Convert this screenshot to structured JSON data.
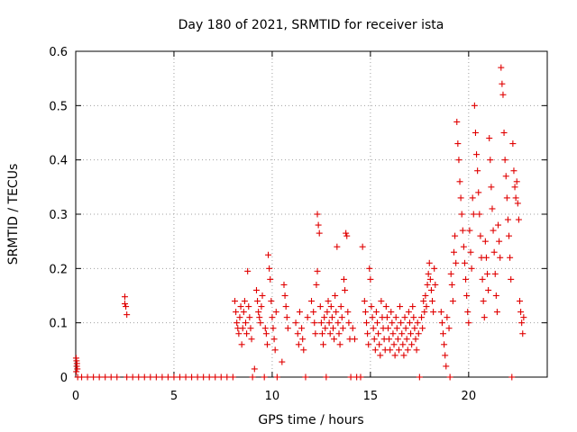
{
  "chart_data": {
    "type": "scatter",
    "title": "Day 180 of 2021, SRMTID for receiver ista",
    "xlabel": "GPS time / hours",
    "ylabel": "SRMTID / TECUs",
    "xlim": [
      0,
      24
    ],
    "ylim": [
      0,
      0.6
    ],
    "xticks": [
      0,
      5,
      10,
      15,
      20
    ],
    "yticks": [
      0,
      0.1,
      0.2,
      0.3,
      0.4,
      0.5,
      0.6
    ],
    "ytick_labels": [
      "0",
      "0.1",
      "0.2",
      "0.3",
      "0.4",
      "0.5",
      "0.6"
    ],
    "grid": true,
    "marker": "+",
    "color": "#e00000",
    "series": [
      {
        "name": "SRMTID",
        "points": [
          [
            0.02,
            0.035
          ],
          [
            0.04,
            0.03
          ],
          [
            0.06,
            0.025
          ],
          [
            0.05,
            0.02
          ],
          [
            0.08,
            0.015
          ],
          [
            0.03,
            0.01
          ],
          [
            0.1,
            0.0
          ],
          [
            0.3,
            0.0
          ],
          [
            0.6,
            0.0
          ],
          [
            0.9,
            0.0
          ],
          [
            1.2,
            0.0
          ],
          [
            1.5,
            0.0
          ],
          [
            1.8,
            0.0
          ],
          [
            2.1,
            0.0
          ],
          [
            2.5,
            0.148
          ],
          [
            2.5,
            0.135
          ],
          [
            2.55,
            0.13
          ],
          [
            2.6,
            0.115
          ],
          [
            2.6,
            0.0
          ],
          [
            2.9,
            0.0
          ],
          [
            3.2,
            0.0
          ],
          [
            3.5,
            0.0
          ],
          [
            3.8,
            0.0
          ],
          [
            4.1,
            0.0
          ],
          [
            4.4,
            0.0
          ],
          [
            4.7,
            0.0
          ],
          [
            5.0,
            0.0
          ],
          [
            5.3,
            0.0
          ],
          [
            5.6,
            0.0
          ],
          [
            5.9,
            0.0
          ],
          [
            6.2,
            0.0
          ],
          [
            6.5,
            0.0
          ],
          [
            6.8,
            0.0
          ],
          [
            7.1,
            0.0
          ],
          [
            7.4,
            0.0
          ],
          [
            7.7,
            0.0
          ],
          [
            8.0,
            0.0
          ],
          [
            8.1,
            0.14
          ],
          [
            8.15,
            0.12
          ],
          [
            8.2,
            0.1
          ],
          [
            8.25,
            0.09
          ],
          [
            8.3,
            0.08
          ],
          [
            8.35,
            0.11
          ],
          [
            8.4,
            0.13
          ],
          [
            8.45,
            0.06
          ],
          [
            8.5,
            0.09
          ],
          [
            8.55,
            0.12
          ],
          [
            8.6,
            0.14
          ],
          [
            8.65,
            0.1
          ],
          [
            8.7,
            0.08
          ],
          [
            8.75,
            0.195
          ],
          [
            8.8,
            0.13
          ],
          [
            8.85,
            0.11
          ],
          [
            8.9,
            0.09
          ],
          [
            8.95,
            0.07
          ],
          [
            9.0,
            0.0
          ],
          [
            9.1,
            0.015
          ],
          [
            9.2,
            0.16
          ],
          [
            9.25,
            0.14
          ],
          [
            9.3,
            0.12
          ],
          [
            9.35,
            0.11
          ],
          [
            9.4,
            0.1
          ],
          [
            9.45,
            0.13
          ],
          [
            9.5,
            0.15
          ],
          [
            9.6,
            0.0
          ],
          [
            9.65,
            0.09
          ],
          [
            9.7,
            0.08
          ],
          [
            9.75,
            0.06
          ],
          [
            9.8,
            0.225
          ],
          [
            9.85,
            0.2
          ],
          [
            9.9,
            0.18
          ],
          [
            9.95,
            0.14
          ],
          [
            10.0,
            0.11
          ],
          [
            10.05,
            0.09
          ],
          [
            10.1,
            0.07
          ],
          [
            10.15,
            0.05
          ],
          [
            10.2,
            0.12
          ],
          [
            10.25,
            0.0
          ],
          [
            10.6,
            0.17
          ],
          [
            10.65,
            0.15
          ],
          [
            10.7,
            0.13
          ],
          [
            10.75,
            0.11
          ],
          [
            10.8,
            0.09
          ],
          [
            10.5,
            0.028
          ],
          [
            11.2,
            0.1
          ],
          [
            11.3,
            0.08
          ],
          [
            11.35,
            0.06
          ],
          [
            11.4,
            0.12
          ],
          [
            11.5,
            0.09
          ],
          [
            11.55,
            0.07
          ],
          [
            11.6,
            0.05
          ],
          [
            11.7,
            0.0
          ],
          [
            11.8,
            0.11
          ],
          [
            12.0,
            0.14
          ],
          [
            12.1,
            0.12
          ],
          [
            12.15,
            0.1
          ],
          [
            12.2,
            0.08
          ],
          [
            12.25,
            0.17
          ],
          [
            12.3,
            0.195
          ],
          [
            12.3,
            0.3
          ],
          [
            12.35,
            0.28
          ],
          [
            12.4,
            0.265
          ],
          [
            12.45,
            0.13
          ],
          [
            12.5,
            0.1
          ],
          [
            12.55,
            0.08
          ],
          [
            12.6,
            0.06
          ],
          [
            12.65,
            0.11
          ],
          [
            12.7,
            0.09
          ],
          [
            12.75,
            0.0
          ],
          [
            12.8,
            0.12
          ],
          [
            12.85,
            0.14
          ],
          [
            12.9,
            0.1
          ],
          [
            12.95,
            0.08
          ],
          [
            13.0,
            0.13
          ],
          [
            13.05,
            0.11
          ],
          [
            13.1,
            0.09
          ],
          [
            13.15,
            0.07
          ],
          [
            13.2,
            0.15
          ],
          [
            13.25,
            0.12
          ],
          [
            13.3,
            0.24
          ],
          [
            13.35,
            0.1
          ],
          [
            13.4,
            0.08
          ],
          [
            13.45,
            0.06
          ],
          [
            13.5,
            0.13
          ],
          [
            13.55,
            0.11
          ],
          [
            13.6,
            0.09
          ],
          [
            13.65,
            0.18
          ],
          [
            13.7,
            0.16
          ],
          [
            13.75,
            0.265
          ],
          [
            13.8,
            0.26
          ],
          [
            13.85,
            0.12
          ],
          [
            13.9,
            0.1
          ],
          [
            13.95,
            0.07
          ],
          [
            14.0,
            0.0
          ],
          [
            14.1,
            0.09
          ],
          [
            14.2,
            0.07
          ],
          [
            14.3,
            0.0
          ],
          [
            14.5,
            0.0
          ],
          [
            14.6,
            0.24
          ],
          [
            14.7,
            0.14
          ],
          [
            14.75,
            0.12
          ],
          [
            14.8,
            0.1
          ],
          [
            14.85,
            0.08
          ],
          [
            14.9,
            0.06
          ],
          [
            14.95,
            0.2
          ],
          [
            15.0,
            0.18
          ],
          [
            15.05,
            0.13
          ],
          [
            15.1,
            0.11
          ],
          [
            15.15,
            0.09
          ],
          [
            15.2,
            0.07
          ],
          [
            15.25,
            0.05
          ],
          [
            15.3,
            0.12
          ],
          [
            15.35,
            0.1
          ],
          [
            15.4,
            0.08
          ],
          [
            15.45,
            0.06
          ],
          [
            15.5,
            0.04
          ],
          [
            15.55,
            0.14
          ],
          [
            15.6,
            0.11
          ],
          [
            15.65,
            0.09
          ],
          [
            15.7,
            0.07
          ],
          [
            15.75,
            0.05
          ],
          [
            15.8,
            0.13
          ],
          [
            15.85,
            0.11
          ],
          [
            15.9,
            0.09
          ],
          [
            15.95,
            0.07
          ],
          [
            16.0,
            0.05
          ],
          [
            16.05,
            0.12
          ],
          [
            16.1,
            0.1
          ],
          [
            16.15,
            0.08
          ],
          [
            16.2,
            0.06
          ],
          [
            16.25,
            0.04
          ],
          [
            16.3,
            0.11
          ],
          [
            16.35,
            0.09
          ],
          [
            16.4,
            0.07
          ],
          [
            16.45,
            0.05
          ],
          [
            16.5,
            0.13
          ],
          [
            16.55,
            0.1
          ],
          [
            16.6,
            0.08
          ],
          [
            16.65,
            0.06
          ],
          [
            16.7,
            0.04
          ],
          [
            16.75,
            0.11
          ],
          [
            16.8,
            0.09
          ],
          [
            16.85,
            0.07
          ],
          [
            16.9,
            0.05
          ],
          [
            16.95,
            0.12
          ],
          [
            17.0,
            0.1
          ],
          [
            17.05,
            0.08
          ],
          [
            17.1,
            0.06
          ],
          [
            17.15,
            0.13
          ],
          [
            17.2,
            0.11
          ],
          [
            17.25,
            0.09
          ],
          [
            17.3,
            0.07
          ],
          [
            17.35,
            0.05
          ],
          [
            17.4,
            0.1
          ],
          [
            17.45,
            0.08
          ],
          [
            17.5,
            0.0
          ],
          [
            17.6,
            0.11
          ],
          [
            17.65,
            0.09
          ],
          [
            17.7,
            0.14
          ],
          [
            17.75,
            0.12
          ],
          [
            17.8,
            0.15
          ],
          [
            17.85,
            0.13
          ],
          [
            17.9,
            0.17
          ],
          [
            17.95,
            0.19
          ],
          [
            18.0,
            0.21
          ],
          [
            18.05,
            0.18
          ],
          [
            18.1,
            0.16
          ],
          [
            18.15,
            0.14
          ],
          [
            18.2,
            0.12
          ],
          [
            18.25,
            0.2
          ],
          [
            18.3,
            0.17
          ],
          [
            18.6,
            0.12
          ],
          [
            18.65,
            0.1
          ],
          [
            18.7,
            0.08
          ],
          [
            18.75,
            0.06
          ],
          [
            18.8,
            0.04
          ],
          [
            18.85,
            0.02
          ],
          [
            18.9,
            0.11
          ],
          [
            19.0,
            0.09
          ],
          [
            19.05,
            0.0
          ],
          [
            19.1,
            0.19
          ],
          [
            19.15,
            0.17
          ],
          [
            19.2,
            0.14
          ],
          [
            19.25,
            0.23
          ],
          [
            19.3,
            0.26
          ],
          [
            19.35,
            0.21
          ],
          [
            19.4,
            0.47
          ],
          [
            19.45,
            0.43
          ],
          [
            19.5,
            0.4
          ],
          [
            19.55,
            0.36
          ],
          [
            19.6,
            0.33
          ],
          [
            19.65,
            0.3
          ],
          [
            19.7,
            0.27
          ],
          [
            19.75,
            0.24
          ],
          [
            19.8,
            0.21
          ],
          [
            19.85,
            0.18
          ],
          [
            19.9,
            0.15
          ],
          [
            19.95,
            0.12
          ],
          [
            20.0,
            0.1
          ],
          [
            20.05,
            0.27
          ],
          [
            20.1,
            0.23
          ],
          [
            20.15,
            0.2
          ],
          [
            20.2,
            0.33
          ],
          [
            20.25,
            0.3
          ],
          [
            20.3,
            0.5
          ],
          [
            20.35,
            0.45
          ],
          [
            20.4,
            0.41
          ],
          [
            20.45,
            0.38
          ],
          [
            20.5,
            0.34
          ],
          [
            20.55,
            0.3
          ],
          [
            20.6,
            0.26
          ],
          [
            20.65,
            0.22
          ],
          [
            20.7,
            0.18
          ],
          [
            20.75,
            0.14
          ],
          [
            20.8,
            0.11
          ],
          [
            20.85,
            0.25
          ],
          [
            20.9,
            0.22
          ],
          [
            20.95,
            0.19
          ],
          [
            21.0,
            0.16
          ],
          [
            21.05,
            0.44
          ],
          [
            21.1,
            0.4
          ],
          [
            21.15,
            0.35
          ],
          [
            21.2,
            0.31
          ],
          [
            21.25,
            0.27
          ],
          [
            21.3,
            0.23
          ],
          [
            21.35,
            0.19
          ],
          [
            21.4,
            0.15
          ],
          [
            21.45,
            0.12
          ],
          [
            21.5,
            0.28
          ],
          [
            21.55,
            0.25
          ],
          [
            21.6,
            0.22
          ],
          [
            21.65,
            0.57
          ],
          [
            21.7,
            0.54
          ],
          [
            21.75,
            0.52
          ],
          [
            21.8,
            0.45
          ],
          [
            21.85,
            0.4
          ],
          [
            21.9,
            0.37
          ],
          [
            21.95,
            0.33
          ],
          [
            22.0,
            0.29
          ],
          [
            22.05,
            0.26
          ],
          [
            22.1,
            0.22
          ],
          [
            22.15,
            0.18
          ],
          [
            22.2,
            0.0
          ],
          [
            22.25,
            0.43
          ],
          [
            22.3,
            0.38
          ],
          [
            22.35,
            0.35
          ],
          [
            22.4,
            0.33
          ],
          [
            22.45,
            0.36
          ],
          [
            22.5,
            0.32
          ],
          [
            22.55,
            0.29
          ],
          [
            22.6,
            0.14
          ],
          [
            22.65,
            0.12
          ],
          [
            22.7,
            0.1
          ],
          [
            22.75,
            0.08
          ],
          [
            22.8,
            0.11
          ]
        ]
      }
    ]
  }
}
